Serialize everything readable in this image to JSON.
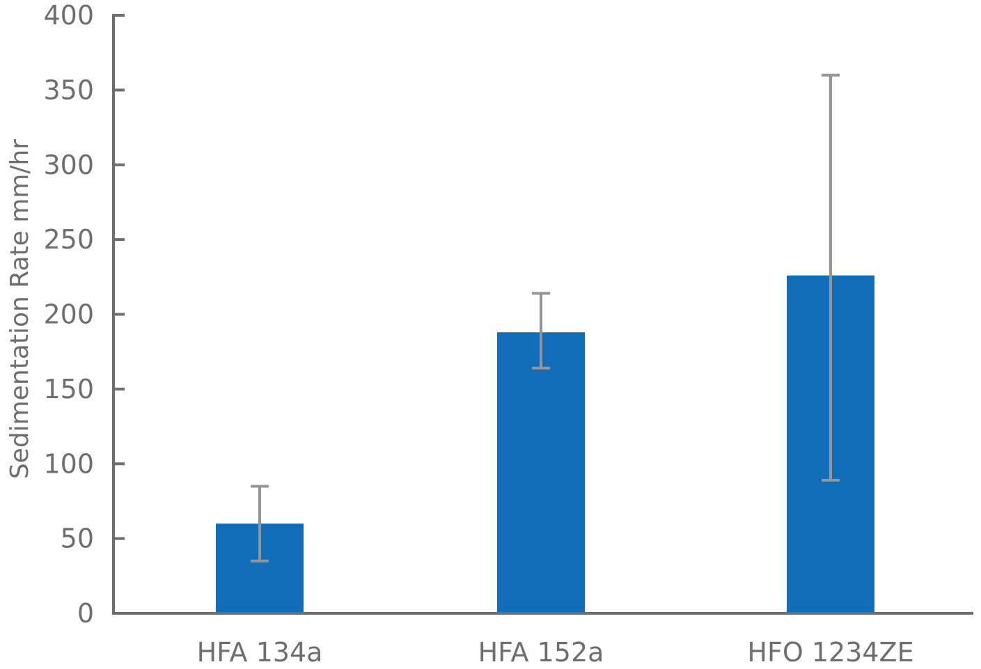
{
  "chart_data": {
    "type": "bar",
    "title": "",
    "xlabel": "",
    "ylabel": "Sedimentation Rate mm/hr",
    "ylim": [
      0,
      400
    ],
    "yticks": [
      "0",
      "50",
      "100",
      "150",
      "200",
      "250",
      "300",
      "350",
      "400"
    ],
    "categories": [
      "HFA 134a",
      "HFA 152a",
      "HFO 1234ZE"
    ],
    "values": [
      60,
      188,
      226
    ],
    "error_bars": [
      {
        "low": 35,
        "high": 85
      },
      {
        "low": 164,
        "high": 214
      },
      {
        "low": 89,
        "high": 360
      }
    ],
    "grid": false,
    "legend": "none",
    "colors": {
      "bar": "#116db8",
      "error_bar": "#939598",
      "axis": "#6d6e71",
      "text": "#6d6e71"
    }
  }
}
